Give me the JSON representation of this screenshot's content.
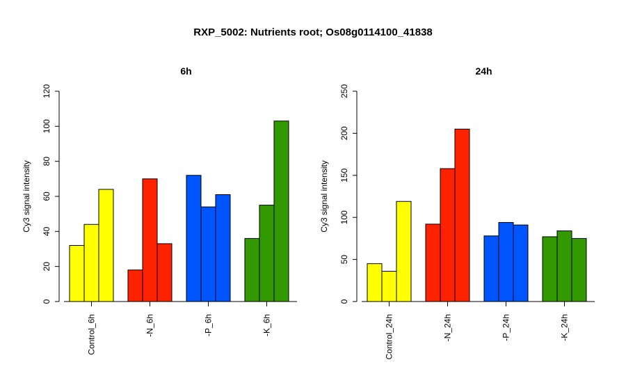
{
  "title": "RXP_5002: Nutrients root; Os08g0114100_41838",
  "chart_data": [
    {
      "type": "bar",
      "title": "6h",
      "ylabel": "Cy3 signal intensity",
      "ylim": [
        0,
        120
      ],
      "yticks": [
        0,
        20,
        40,
        60,
        80,
        100,
        120
      ],
      "categories": [
        "Control_6h",
        "-N_6h",
        "-P_6h",
        "-K_6h"
      ],
      "colors": [
        "#ffff00",
        "#ff2200",
        "#0055ff",
        "#339900"
      ],
      "values": [
        [
          32,
          44,
          64
        ],
        [
          18,
          70,
          33
        ],
        [
          72,
          54,
          61
        ],
        [
          36,
          55,
          103
        ]
      ]
    },
    {
      "type": "bar",
      "title": "24h",
      "ylabel": "Cy3 signal intensity",
      "ylim": [
        0,
        250
      ],
      "yticks": [
        0,
        50,
        100,
        150,
        200,
        250
      ],
      "categories": [
        "Control_24h",
        "-N_24h",
        "-P_24h",
        "-K_24h"
      ],
      "colors": [
        "#ffff00",
        "#ff2200",
        "#0055ff",
        "#339900"
      ],
      "values": [
        [
          45,
          36,
          119
        ],
        [
          92,
          158,
          205
        ],
        [
          78,
          94,
          91
        ],
        [
          77,
          84,
          75
        ]
      ]
    }
  ]
}
